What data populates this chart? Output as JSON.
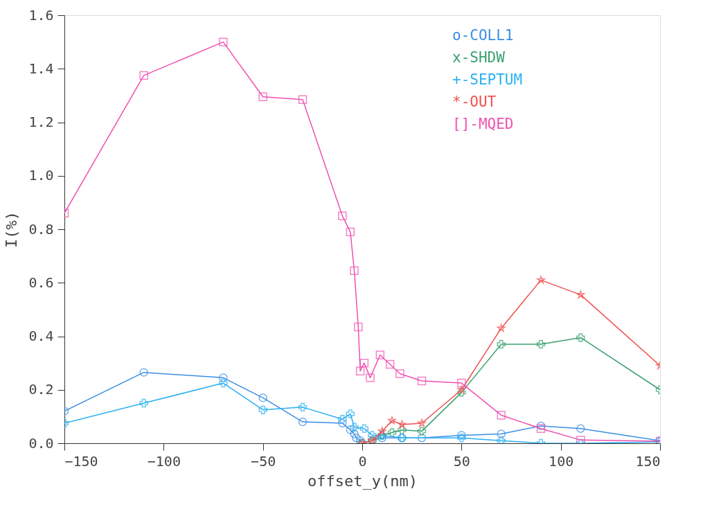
{
  "chart_data": {
    "type": "line",
    "xlabel": "offset_y(nm)",
    "ylabel": "I(%)",
    "xlim": [
      -150,
      150
    ],
    "xticks": [
      -150,
      -100,
      -50,
      0,
      50,
      100,
      150
    ],
    "ylim": [
      0,
      1.6
    ],
    "yticks": [
      {
        "value": 0,
        "label": "0.0"
      },
      {
        "value": 0.2,
        "label": "0.2"
      },
      {
        "value": 0.4,
        "label": "0.4"
      },
      {
        "value": 0.6,
        "label": "0.6"
      },
      {
        "value": 0.8,
        "label": "0.8"
      },
      {
        "value": 1.0,
        "label": "1.0"
      },
      {
        "value": 1.2,
        "label": "1.2"
      },
      {
        "value": 1.4,
        "label": "1.4"
      },
      {
        "value": 1.6,
        "label": "1.6"
      }
    ],
    "grid": false,
    "legend": "top right",
    "line_style": "solid",
    "series": [
      {
        "name": "o-COLL1",
        "color": "#3a8ee6",
        "marker": "circle",
        "x": [
          -150,
          -110,
          -70,
          -50,
          -30,
          -10,
          -6,
          -4,
          -3,
          -1,
          0,
          5,
          10,
          20,
          30,
          50,
          70,
          90,
          110,
          150
        ],
        "values": [
          0.12,
          0.265,
          0.245,
          0.17,
          0.08,
          0.075,
          0.05,
          0.035,
          0.02,
          0.01,
          0.0,
          0.01,
          0.02,
          0.02,
          0.02,
          0.03,
          0.035,
          0.065,
          0.055,
          0.01
        ]
      },
      {
        "name": "x-SHDW",
        "color": "#3aa070",
        "marker": "cross",
        "x": [
          0,
          5,
          10,
          15,
          20,
          30,
          50,
          70,
          90,
          110,
          150
        ],
        "values": [
          0.0,
          0.01,
          0.03,
          0.04,
          0.05,
          0.045,
          0.19,
          0.37,
          0.37,
          0.395,
          0.2
        ]
      },
      {
        "name": "+-SEPTUM",
        "color": "#29b0f0",
        "marker": "cross",
        "x": [
          -150,
          -110,
          -70,
          -50,
          -30,
          -10,
          -6,
          -4,
          1,
          5,
          10,
          20,
          50,
          70,
          90,
          110,
          150
        ],
        "values": [
          0.075,
          0.15,
          0.225,
          0.125,
          0.135,
          0.09,
          0.11,
          0.06,
          0.055,
          0.03,
          0.03,
          0.02,
          0.02,
          0.01,
          0.0,
          0.0,
          0.005
        ]
      },
      {
        "name": "*-OUT",
        "color": "#f05050",
        "marker": "star",
        "x": [
          0,
          5,
          10,
          15,
          20,
          30,
          50,
          70,
          90,
          110,
          150
        ],
        "values": [
          0.0,
          0.01,
          0.045,
          0.085,
          0.07,
          0.075,
          0.2,
          0.43,
          0.61,
          0.555,
          0.29
        ]
      },
      {
        "name": "[]-MQED",
        "color": "#f050b0",
        "marker": "square",
        "x": [
          -150,
          -110,
          -70,
          -50,
          -30,
          -10,
          -6,
          -4,
          -2,
          -1,
          1,
          4,
          9,
          14,
          19,
          30,
          50,
          70,
          90,
          110,
          150
        ],
        "values": [
          0.86,
          1.375,
          1.5,
          1.295,
          1.285,
          0.85,
          0.79,
          0.645,
          0.435,
          0.27,
          0.3,
          0.245,
          0.33,
          0.295,
          0.26,
          0.233,
          0.225,
          0.105,
          0.055,
          0.012,
          0.008
        ]
      }
    ]
  }
}
